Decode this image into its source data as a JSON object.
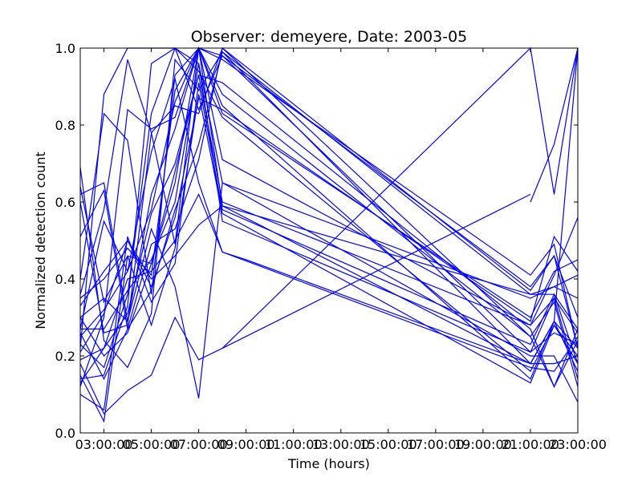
{
  "chart_data": {
    "type": "line",
    "title": "Observer: demeyere, Date: 2003-05",
    "xlabel": "Time (hours)",
    "ylabel": "Normalized detection count",
    "xlim": [
      2.0,
      23.0
    ],
    "ylim": [
      0.0,
      1.0
    ],
    "x_unit": "hour of day",
    "x_ticks": [
      3,
      5,
      7,
      9,
      11,
      13,
      15,
      17,
      19,
      21,
      23
    ],
    "x_tick_labels": [
      "03:00:00",
      "05:00:00",
      "07:00:00",
      "09:00:00",
      "11:00:00",
      "13:00:00",
      "15:00:00",
      "17:00:00",
      "19:00:00",
      "21:00:00",
      "23:00:00"
    ],
    "y_ticks": [
      0.0,
      0.2,
      0.4,
      0.6,
      0.8,
      1.0
    ],
    "y_tick_labels": [
      "0.0",
      "0.2",
      "0.4",
      "0.6",
      "0.8",
      "1.0"
    ],
    "grid": false,
    "legend": "none",
    "line_color": "#0000ff",
    "series": [
      {
        "points": [
          [
            2,
            0.22
          ],
          [
            3,
            0.88
          ],
          [
            4,
            1.0
          ],
          [
            5,
            1.0
          ],
          [
            6,
            1.0
          ],
          [
            7,
            0.84
          ],
          [
            8,
            0.98
          ],
          [
            21,
            0.38
          ],
          [
            22,
            0.46
          ],
          [
            23,
            0.3
          ]
        ]
      },
      {
        "points": [
          [
            2,
            0.35
          ],
          [
            3,
            0.4
          ],
          [
            4,
            0.48
          ],
          [
            5,
            0.41
          ],
          [
            6,
            0.89
          ],
          [
            7,
            1.0
          ],
          [
            8,
            0.83
          ],
          [
            21,
            0.3
          ],
          [
            22,
            0.42
          ],
          [
            23,
            0.45
          ]
        ]
      },
      {
        "points": [
          [
            2,
            0.18
          ],
          [
            3,
            0.05
          ],
          [
            4,
            0.11
          ],
          [
            5,
            0.15
          ],
          [
            6,
            0.3
          ],
          [
            7,
            0.19
          ],
          [
            8,
            0.22
          ],
          [
            21,
            0.62
          ]
        ]
      },
      {
        "points": [
          [
            2,
            0.25
          ],
          [
            3,
            0.32
          ],
          [
            4,
            0.42
          ],
          [
            5,
            0.58
          ],
          [
            6,
            0.86
          ],
          [
            7,
            1.0
          ],
          [
            8,
            0.97
          ],
          [
            21,
            0.41
          ],
          [
            22,
            0.49
          ],
          [
            23,
            0.22
          ]
        ]
      },
      {
        "points": [
          [
            2,
            0.51
          ],
          [
            3,
            0.63
          ],
          [
            4,
            0.27
          ],
          [
            5,
            0.49
          ],
          [
            6,
            0.53
          ],
          [
            7,
            0.71
          ],
          [
            8,
            1.0
          ],
          [
            21,
            0.25
          ],
          [
            22,
            0.34
          ],
          [
            23,
            0.12
          ]
        ]
      },
      {
        "points": [
          [
            2,
            0.3
          ],
          [
            3,
            0.2
          ],
          [
            4,
            0.26
          ],
          [
            5,
            0.44
          ],
          [
            6,
            0.68
          ],
          [
            7,
            0.93
          ],
          [
            8,
            0.6
          ],
          [
            21,
            0.28
          ],
          [
            22,
            0.41
          ],
          [
            23,
            0.56
          ]
        ]
      },
      {
        "points": [
          [
            2,
            0.15
          ],
          [
            3,
            0.03
          ],
          [
            4,
            0.46
          ],
          [
            5,
            0.28
          ],
          [
            6,
            0.48
          ],
          [
            7,
            0.88
          ],
          [
            8,
            0.57
          ],
          [
            21,
            0.13
          ],
          [
            22,
            0.28
          ],
          [
            23,
            0.18
          ]
        ]
      },
      {
        "points": [
          [
            2,
            0.27
          ],
          [
            3,
            0.55
          ],
          [
            4,
            0.42
          ],
          [
            5,
            0.73
          ],
          [
            6,
            0.92
          ],
          [
            7,
            0.65
          ],
          [
            8,
            0.47
          ],
          [
            21,
            0.17
          ],
          [
            22,
            0.16
          ],
          [
            23,
            0.25
          ]
        ]
      },
      {
        "points": [
          [
            2,
            0.62
          ],
          [
            3,
            0.65
          ],
          [
            4,
            0.29
          ],
          [
            5,
            0.53
          ],
          [
            6,
            0.38
          ],
          [
            7,
            0.09
          ],
          [
            8,
            0.65
          ],
          [
            21,
            0.2
          ],
          [
            22,
            0.2
          ],
          [
            23,
            0.08
          ]
        ]
      },
      {
        "points": [
          [
            2,
            0.14
          ],
          [
            3,
            0.15
          ],
          [
            4,
            0.33
          ],
          [
            5,
            0.96
          ],
          [
            6,
            1.0
          ],
          [
            7,
            0.94
          ],
          [
            8,
            0.82
          ],
          [
            21,
            0.16
          ],
          [
            22,
            0.28
          ],
          [
            23,
            0.2
          ]
        ]
      },
      {
        "points": [
          [
            2,
            0.4
          ],
          [
            3,
            0.83
          ],
          [
            4,
            0.76
          ],
          [
            5,
            0.36
          ],
          [
            6,
            0.93
          ],
          [
            7,
            1.0
          ],
          [
            8,
            0.88
          ],
          [
            21,
            0.25
          ],
          [
            22,
            0.12
          ],
          [
            23,
            0.27
          ]
        ]
      },
      {
        "points": [
          [
            2,
            0.12
          ],
          [
            3,
            0.3
          ],
          [
            4,
            0.84
          ],
          [
            5,
            0.79
          ],
          [
            6,
            0.82
          ],
          [
            7,
            1.0
          ],
          [
            8,
            0.59
          ],
          [
            21,
            0.36
          ],
          [
            22,
            0.36
          ],
          [
            23,
            0.27
          ]
        ]
      },
      {
        "points": [
          [
            2,
            0.33
          ],
          [
            3,
            0.42
          ],
          [
            4,
            0.5
          ],
          [
            5,
            0.4
          ],
          [
            6,
            0.46
          ],
          [
            7,
            0.54
          ],
          [
            8,
            0.59
          ],
          [
            21,
            0.18
          ],
          [
            22,
            0.18
          ],
          [
            23,
            0.2
          ]
        ]
      },
      {
        "points": [
          [
            2,
            0.27
          ],
          [
            3,
            0.27
          ],
          [
            4,
            0.37
          ],
          [
            5,
            0.45
          ],
          [
            6,
            0.6
          ],
          [
            7,
            0.96
          ],
          [
            8,
            0.55
          ],
          [
            21,
            0.21
          ],
          [
            22,
            0.35
          ],
          [
            23,
            0.14
          ]
        ]
      },
      {
        "points": [
          [
            2,
            0.6
          ],
          [
            3,
            0.26
          ],
          [
            4,
            0.28
          ],
          [
            5,
            0.78
          ],
          [
            6,
            0.85
          ],
          [
            7,
            0.83
          ],
          [
            8,
            1.0
          ],
          [
            21,
            0.37
          ],
          [
            22,
            0.46
          ],
          [
            23,
            0.22
          ]
        ]
      },
      {
        "points": [
          [
            2,
            0.3
          ],
          [
            3,
            0.35
          ],
          [
            4,
            0.29
          ],
          [
            5,
            0.62
          ],
          [
            6,
            0.79
          ],
          [
            7,
            1.0
          ],
          [
            8,
            0.85
          ],
          [
            21,
            0.14
          ],
          [
            22,
            0.29
          ],
          [
            23,
            1.0
          ]
        ]
      },
      {
        "points": [
          [
            2,
            0.69
          ],
          [
            3,
            0.24
          ],
          [
            4,
            0.17
          ],
          [
            5,
            0.31
          ],
          [
            6,
            0.97
          ],
          [
            7,
            0.89
          ],
          [
            8,
            0.99
          ],
          [
            21,
            0.18
          ],
          [
            22,
            0.29
          ],
          [
            23,
            0.16
          ]
        ]
      },
      {
        "points": [
          [
            2,
            0.1
          ],
          [
            3,
            0.06
          ],
          [
            4,
            0.51
          ],
          [
            5,
            0.34
          ],
          [
            6,
            0.44
          ],
          [
            7,
            0.91
          ],
          [
            8,
            0.58
          ],
          [
            21,
            0.23
          ],
          [
            22,
            0.36
          ],
          [
            23,
            0.18
          ]
        ]
      },
      {
        "points": [
          [
            2,
            0.23
          ],
          [
            3,
            0.17
          ],
          [
            4,
            0.36
          ],
          [
            5,
            0.83
          ],
          [
            6,
            1.0
          ],
          [
            7,
            0.96
          ],
          [
            8,
            0.65
          ],
          [
            21,
            0.35
          ],
          [
            22,
            0.38
          ],
          [
            23,
            0.41
          ]
        ]
      },
      {
        "points": [
          [
            2,
            0.13
          ],
          [
            3,
            0.22
          ],
          [
            4,
            0.31
          ],
          [
            5,
            0.57
          ],
          [
            6,
            0.7
          ],
          [
            7,
            0.93
          ],
          [
            8,
            0.91
          ],
          [
            21,
            0.27
          ],
          [
            22,
            0.12
          ],
          [
            23,
            0.24
          ]
        ]
      },
      {
        "points": [
          [
            2,
            0.36
          ],
          [
            3,
            0.58
          ],
          [
            4,
            0.97
          ],
          [
            5,
            0.78
          ],
          [
            6,
            0.49
          ],
          [
            7,
            1.0
          ],
          [
            8,
            0.71
          ],
          [
            21,
            0.28
          ],
          [
            22,
            0.35
          ],
          [
            23,
            0.26
          ]
        ]
      },
      {
        "points": [
          [
            2,
            0.26
          ],
          [
            3,
            0.14
          ],
          [
            4,
            0.27
          ],
          [
            5,
            0.37
          ],
          [
            6,
            0.58
          ],
          [
            7,
            0.75
          ],
          [
            8,
            0.99
          ],
          [
            21,
            0.36
          ],
          [
            22,
            0.38
          ],
          [
            23,
            0.35
          ]
        ]
      },
      {
        "points": [
          [
            2,
            0.19
          ],
          [
            3,
            0.22
          ],
          [
            4,
            0.4
          ],
          [
            5,
            0.42
          ],
          [
            6,
            0.5
          ],
          [
            7,
            0.62
          ],
          [
            8,
            0.47
          ],
          [
            9,
            0.45
          ],
          [
            21,
            0.18
          ],
          [
            22,
            0.29
          ],
          [
            23,
            0.22
          ]
        ]
      },
      {
        "points": [
          [
            2,
            0.64
          ],
          [
            3,
            0.34
          ],
          [
            4,
            0.46
          ],
          [
            5,
            0.44
          ],
          [
            6,
            0.65
          ],
          [
            7,
            1.0
          ],
          [
            8,
            0.98
          ],
          [
            21,
            0.21
          ],
          [
            22,
            0.26
          ],
          [
            23,
            0.23
          ]
        ]
      },
      {
        "points": [
          [
            2,
            0.21
          ],
          [
            3,
            0.31
          ],
          [
            4,
            0.5
          ],
          [
            5,
            0.38
          ],
          [
            6,
            0.56
          ],
          [
            7,
            0.87
          ],
          [
            8,
            0.84
          ],
          [
            21,
            0.29
          ],
          [
            22,
            0.51
          ],
          [
            23,
            0.42
          ]
        ]
      },
      {
        "points": [
          [
            8,
            0.22
          ],
          [
            21,
            1.0
          ],
          [
            22,
            0.62
          ],
          [
            23,
            1.0
          ]
        ]
      },
      {
        "points": [
          [
            21,
            0.6
          ],
          [
            22,
            0.75
          ],
          [
            23,
            1.0
          ]
        ]
      }
    ]
  }
}
